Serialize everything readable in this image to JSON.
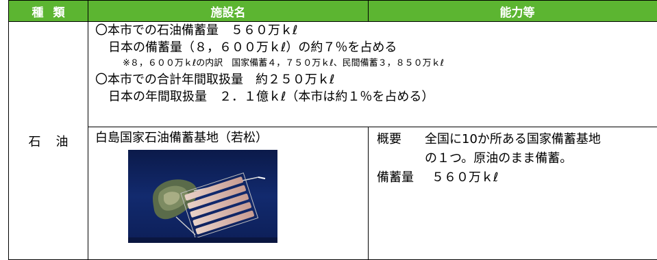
{
  "table": {
    "headers": {
      "kind": "種類",
      "facility": "施設名",
      "ability": "能力等"
    },
    "row": {
      "kind": "石油",
      "summary": {
        "line1": "〇本市での石油備蓄量　５６０万ｋℓ",
        "line2": "日本の備蓄量（８，６００万ｋℓ）の約７％を占める",
        "note": "※８，６００万ｋℓの内訳　国家備蓄４，７５０万ｋℓ、民間備蓄３，８５０万ｋℓ",
        "line3": "〇本市での合計年間取扱量　約２５０万ｋℓ",
        "line4": "日本の年間取扱量　２．１億ｋℓ（本市は約１％を占める）"
      },
      "facility": {
        "name": "白島国家石油備蓄基地（若松）",
        "photo_icon": "aerial-photo-oil-storage-base"
      },
      "ability": {
        "overview_label": "概要",
        "overview_text1": "全国に10か所ある国家備蓄基地",
        "overview_text2": "の１つ。原油のまま備蓄。",
        "capacity_label": "備蓄量",
        "capacity_value": "５６０万ｋℓ"
      }
    }
  },
  "colors": {
    "header_bg": "#5cb531",
    "header_text": "#ffffff",
    "border": "#000000"
  }
}
